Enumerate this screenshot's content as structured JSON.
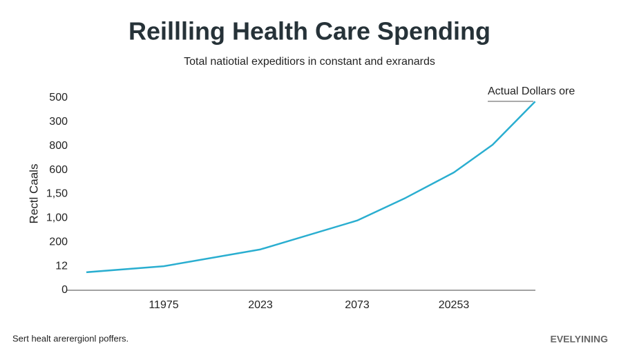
{
  "chart_data": {
    "type": "line",
    "title": "Reillling Health Care Spending",
    "subtitle": "Total natiotial expeditiors in constant and exranards",
    "ylabel": "Rectl Caals",
    "annotation": "Actual Dollars ore",
    "footer": "Sert healt arerergionl poffers.",
    "brand": "EVELYINING",
    "xlim": [
      0,
      5
    ],
    "xticks": [
      {
        "value": 1,
        "label": "11975"
      },
      {
        "value": 2,
        "label": "2023"
      },
      {
        "value": 3,
        "label": "2073"
      },
      {
        "value": 4,
        "label": "20253"
      }
    ],
    "ylim": [
      0,
      8
    ],
    "yticks": [
      0,
      {
        "value": 1,
        "label": "12"
      },
      {
        "value": 2,
        "label": "200"
      },
      {
        "value": 3,
        "label": "1,00"
      },
      {
        "value": 4,
        "label": "1,50"
      },
      {
        "value": 5,
        "label": "600"
      },
      {
        "value": 6,
        "label": "800"
      },
      {
        "value": 7,
        "label": "300"
      },
      {
        "value": 8,
        "label": "500"
      }
    ],
    "series": [
      {
        "name": "Actual Dollars ore",
        "color": "#2aaed0",
        "x": [
          0.2,
          1,
          2,
          3,
          3.5,
          4,
          4.4,
          4.84
        ],
        "values": [
          0.75,
          1.0,
          1.7,
          2.9,
          3.84,
          4.9,
          6.05,
          7.85
        ]
      }
    ],
    "grid": false
  }
}
